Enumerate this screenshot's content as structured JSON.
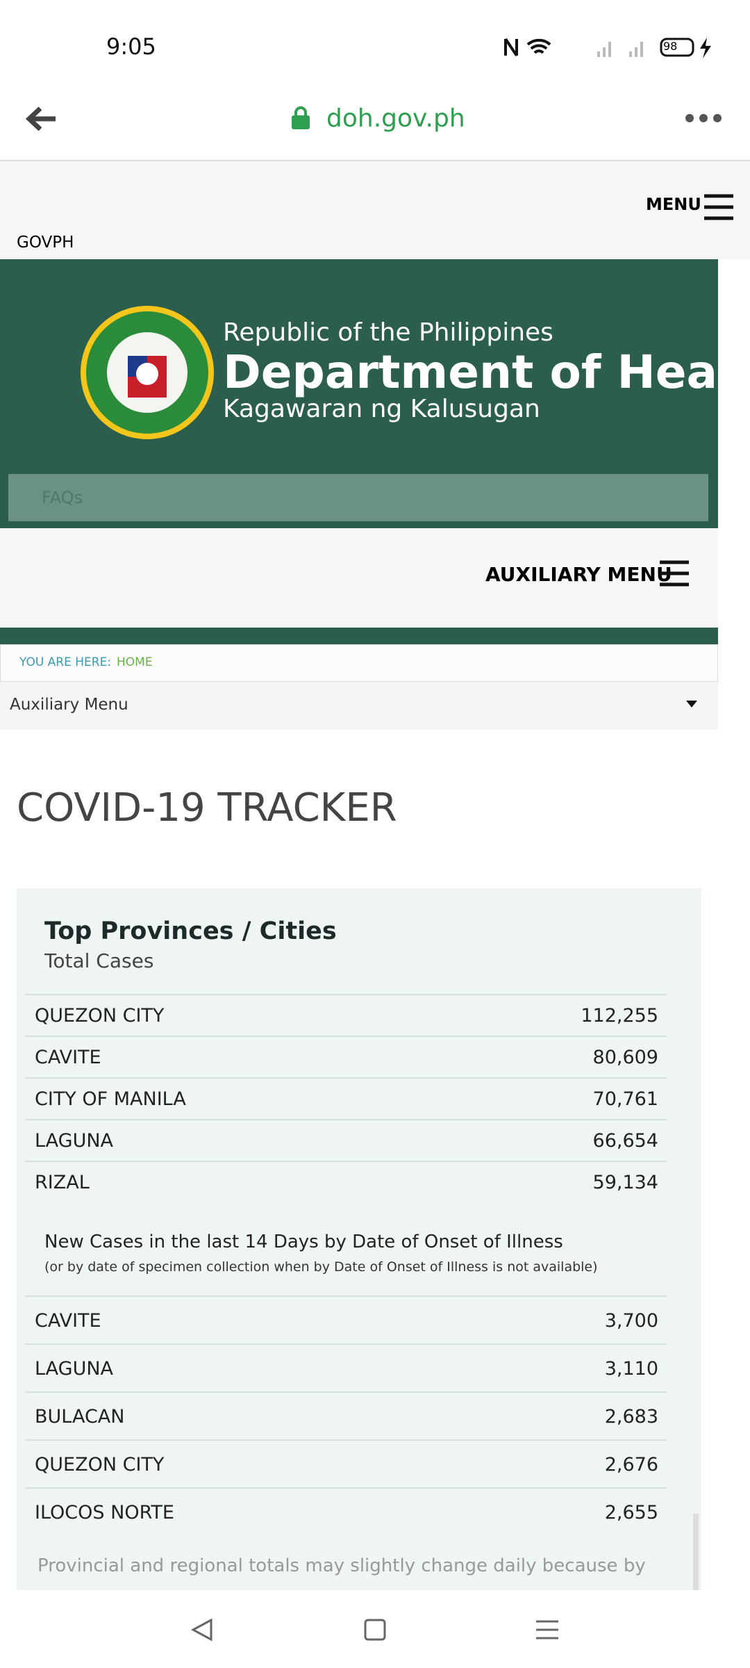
{
  "status_bar": {
    "time": "9:05",
    "battery": "98"
  },
  "browser": {
    "url": "doh.gov.ph"
  },
  "site_header": {
    "menu": "MENU",
    "govph": "GOVPH"
  },
  "banner": {
    "line1": "Republic of the Philippines",
    "line2": "Department of Health",
    "line3": "Kagawaran ng Kalusugan",
    "faqs": "FAQs"
  },
  "aux_menu": {
    "label": "AUXILIARY MENU"
  },
  "breadcrumb": {
    "label": "YOU ARE HERE:",
    "home": "HOME"
  },
  "dropdown": {
    "label": "Auxiliary Menu"
  },
  "page_title": "COVID-19 TRACKER",
  "card": {
    "title": "Top Provinces / Cities",
    "subtitle": "Total Cases",
    "total_rows": [
      [
        "QUEZON CITY",
        "112,255"
      ],
      [
        "CAVITE",
        "80,609"
      ],
      [
        "CITY OF MANILA",
        "70,761"
      ],
      [
        "LAGUNA",
        "66,654"
      ],
      [
        "RIZAL",
        "59,134"
      ]
    ],
    "new_heading": "New Cases in the last 14 Days by Date of Onset of Illness",
    "new_note": "(or by date of specimen collection when by Date of Onset of Illness is not available)",
    "new_rows": [
      [
        "CAVITE",
        "3,700"
      ],
      [
        "LAGUNA",
        "3,110"
      ],
      [
        "BULACAN",
        "2,683"
      ],
      [
        "QUEZON CITY",
        "2,676"
      ],
      [
        "ILOCOS NORTE",
        "2,655"
      ]
    ],
    "footnote": "Provincial and regional totals may slightly change daily because by"
  }
}
